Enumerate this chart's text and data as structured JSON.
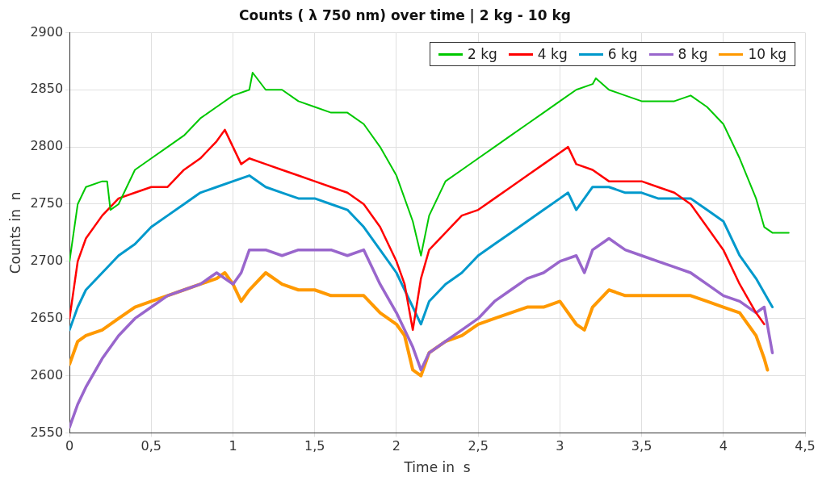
{
  "chart_data": {
    "type": "line",
    "title": "Counts ( λ 750 nm) over time | 2 kg - 10 kg",
    "xlabel": "Time in  s",
    "ylabel": "Counts in  n",
    "xlim": [
      0,
      4.5
    ],
    "ylim": [
      2550,
      2900
    ],
    "xticks": [
      0,
      {
        "value": 0.5,
        "label": "0,5"
      },
      1,
      {
        "value": 1.5,
        "label": "1,5"
      },
      2,
      {
        "value": 2.5,
        "label": "2,5"
      },
      3,
      {
        "value": 3.5,
        "label": "3,5"
      },
      4,
      {
        "value": 4.5,
        "label": "4,5"
      }
    ],
    "yticks": [
      2550,
      2600,
      2650,
      2700,
      2750,
      2800,
      2850,
      2900
    ],
    "grid": true,
    "legend": "top right",
    "marker": "none",
    "line_style": "solid",
    "series": [
      {
        "name": "2 kg",
        "color": "#00c800",
        "x": [
          0,
          0.05,
          0.1,
          0.2,
          0.23,
          0.25,
          0.3,
          0.4,
          0.5,
          0.6,
          0.7,
          0.8,
          0.9,
          1.0,
          1.1,
          1.12,
          1.2,
          1.3,
          1.4,
          1.5,
          1.6,
          1.7,
          1.8,
          1.9,
          2.0,
          2.1,
          2.15,
          2.2,
          2.3,
          2.4,
          2.5,
          2.6,
          2.7,
          2.8,
          2.9,
          3.0,
          3.1,
          3.2,
          3.22,
          3.3,
          3.4,
          3.5,
          3.6,
          3.7,
          3.8,
          3.9,
          4.0,
          4.1,
          4.2,
          4.25,
          4.3,
          4.4
        ],
        "values": [
          2700,
          2750,
          2765,
          2770,
          2770,
          2745,
          2750,
          2780,
          2790,
          2800,
          2810,
          2825,
          2835,
          2845,
          2850,
          2865,
          2850,
          2850,
          2840,
          2835,
          2830,
          2830,
          2820,
          2800,
          2775,
          2735,
          2705,
          2740,
          2770,
          2780,
          2790,
          2800,
          2810,
          2820,
          2830,
          2840,
          2850,
          2855,
          2860,
          2850,
          2845,
          2840,
          2840,
          2840,
          2845,
          2835,
          2820,
          2790,
          2755,
          2730,
          2725,
          2725
        ]
      },
      {
        "name": "4 kg",
        "color": "#ff0000",
        "x": [
          0,
          0.05,
          0.1,
          0.2,
          0.3,
          0.4,
          0.5,
          0.6,
          0.7,
          0.8,
          0.9,
          0.95,
          1.0,
          1.05,
          1.1,
          1.2,
          1.3,
          1.4,
          1.5,
          1.6,
          1.7,
          1.8,
          1.9,
          2.0,
          2.05,
          2.1,
          2.15,
          2.2,
          2.3,
          2.4,
          2.5,
          2.6,
          2.7,
          2.8,
          2.9,
          3.0,
          3.05,
          3.1,
          3.2,
          3.3,
          3.4,
          3.5,
          3.6,
          3.7,
          3.8,
          3.9,
          4.0,
          4.1,
          4.2,
          4.25
        ],
        "values": [
          2650,
          2700,
          2720,
          2740,
          2755,
          2760,
          2765,
          2765,
          2780,
          2790,
          2805,
          2815,
          2800,
          2785,
          2790,
          2785,
          2780,
          2775,
          2770,
          2765,
          2760,
          2750,
          2730,
          2700,
          2680,
          2640,
          2685,
          2710,
          2725,
          2740,
          2745,
          2755,
          2765,
          2775,
          2785,
          2795,
          2800,
          2785,
          2780,
          2770,
          2770,
          2770,
          2765,
          2760,
          2750,
          2730,
          2710,
          2680,
          2655,
          2645
        ]
      },
      {
        "name": "6 kg",
        "color": "#0099cc",
        "x": [
          0,
          0.05,
          0.1,
          0.2,
          0.3,
          0.4,
          0.5,
          0.6,
          0.7,
          0.8,
          0.9,
          1.0,
          1.1,
          1.2,
          1.3,
          1.4,
          1.5,
          1.6,
          1.7,
          1.8,
          1.9,
          2.0,
          2.1,
          2.15,
          2.2,
          2.3,
          2.4,
          2.5,
          2.6,
          2.7,
          2.8,
          2.9,
          3.0,
          3.05,
          3.1,
          3.2,
          3.3,
          3.4,
          3.5,
          3.6,
          3.7,
          3.8,
          3.9,
          4.0,
          4.1,
          4.2,
          4.3
        ],
        "values": [
          2640,
          2660,
          2675,
          2690,
          2705,
          2715,
          2730,
          2740,
          2750,
          2760,
          2765,
          2770,
          2775,
          2765,
          2760,
          2755,
          2755,
          2750,
          2745,
          2730,
          2710,
          2690,
          2660,
          2645,
          2665,
          2680,
          2690,
          2705,
          2715,
          2725,
          2735,
          2745,
          2755,
          2760,
          2745,
          2765,
          2765,
          2760,
          2760,
          2755,
          2755,
          2755,
          2745,
          2735,
          2705,
          2685,
          2660
        ]
      },
      {
        "name": "8 kg",
        "color": "#9966cc",
        "x": [
          0,
          0.05,
          0.1,
          0.2,
          0.3,
          0.4,
          0.5,
          0.6,
          0.7,
          0.8,
          0.9,
          1.0,
          1.05,
          1.1,
          1.2,
          1.3,
          1.4,
          1.5,
          1.6,
          1.7,
          1.8,
          1.9,
          2.0,
          2.1,
          2.15,
          2.2,
          2.3,
          2.4,
          2.5,
          2.6,
          2.7,
          2.8,
          2.9,
          3.0,
          3.1,
          3.15,
          3.2,
          3.3,
          3.4,
          3.5,
          3.6,
          3.7,
          3.8,
          3.9,
          4.0,
          4.1,
          4.2,
          4.25,
          4.3
        ],
        "values": [
          2555,
          2575,
          2590,
          2615,
          2635,
          2650,
          2660,
          2670,
          2675,
          2680,
          2690,
          2680,
          2690,
          2710,
          2710,
          2705,
          2710,
          2710,
          2710,
          2705,
          2710,
          2680,
          2655,
          2625,
          2605,
          2620,
          2630,
          2640,
          2650,
          2665,
          2675,
          2685,
          2690,
          2700,
          2705,
          2690,
          2710,
          2720,
          2710,
          2705,
          2700,
          2695,
          2690,
          2680,
          2670,
          2665,
          2655,
          2660,
          2620
        ]
      },
      {
        "name": "10 kg",
        "color": "#ff9900",
        "x": [
          0,
          0.05,
          0.1,
          0.2,
          0.3,
          0.4,
          0.5,
          0.6,
          0.7,
          0.8,
          0.9,
          0.95,
          1.0,
          1.05,
          1.1,
          1.2,
          1.3,
          1.4,
          1.5,
          1.6,
          1.7,
          1.8,
          1.9,
          2.0,
          2.05,
          2.1,
          2.15,
          2.2,
          2.3,
          2.4,
          2.5,
          2.6,
          2.7,
          2.8,
          2.9,
          3.0,
          3.1,
          3.15,
          3.2,
          3.3,
          3.4,
          3.5,
          3.6,
          3.7,
          3.8,
          3.9,
          4.0,
          4.1,
          4.2,
          4.25,
          4.27
        ],
        "values": [
          2610,
          2630,
          2635,
          2640,
          2650,
          2660,
          2665,
          2670,
          2675,
          2680,
          2685,
          2690,
          2680,
          2665,
          2675,
          2690,
          2680,
          2675,
          2675,
          2670,
          2670,
          2670,
          2655,
          2645,
          2635,
          2605,
          2600,
          2620,
          2630,
          2635,
          2645,
          2650,
          2655,
          2660,
          2660,
          2665,
          2645,
          2640,
          2660,
          2675,
          2670,
          2670,
          2670,
          2670,
          2670,
          2665,
          2660,
          2655,
          2635,
          2615,
          2605
        ]
      }
    ]
  }
}
